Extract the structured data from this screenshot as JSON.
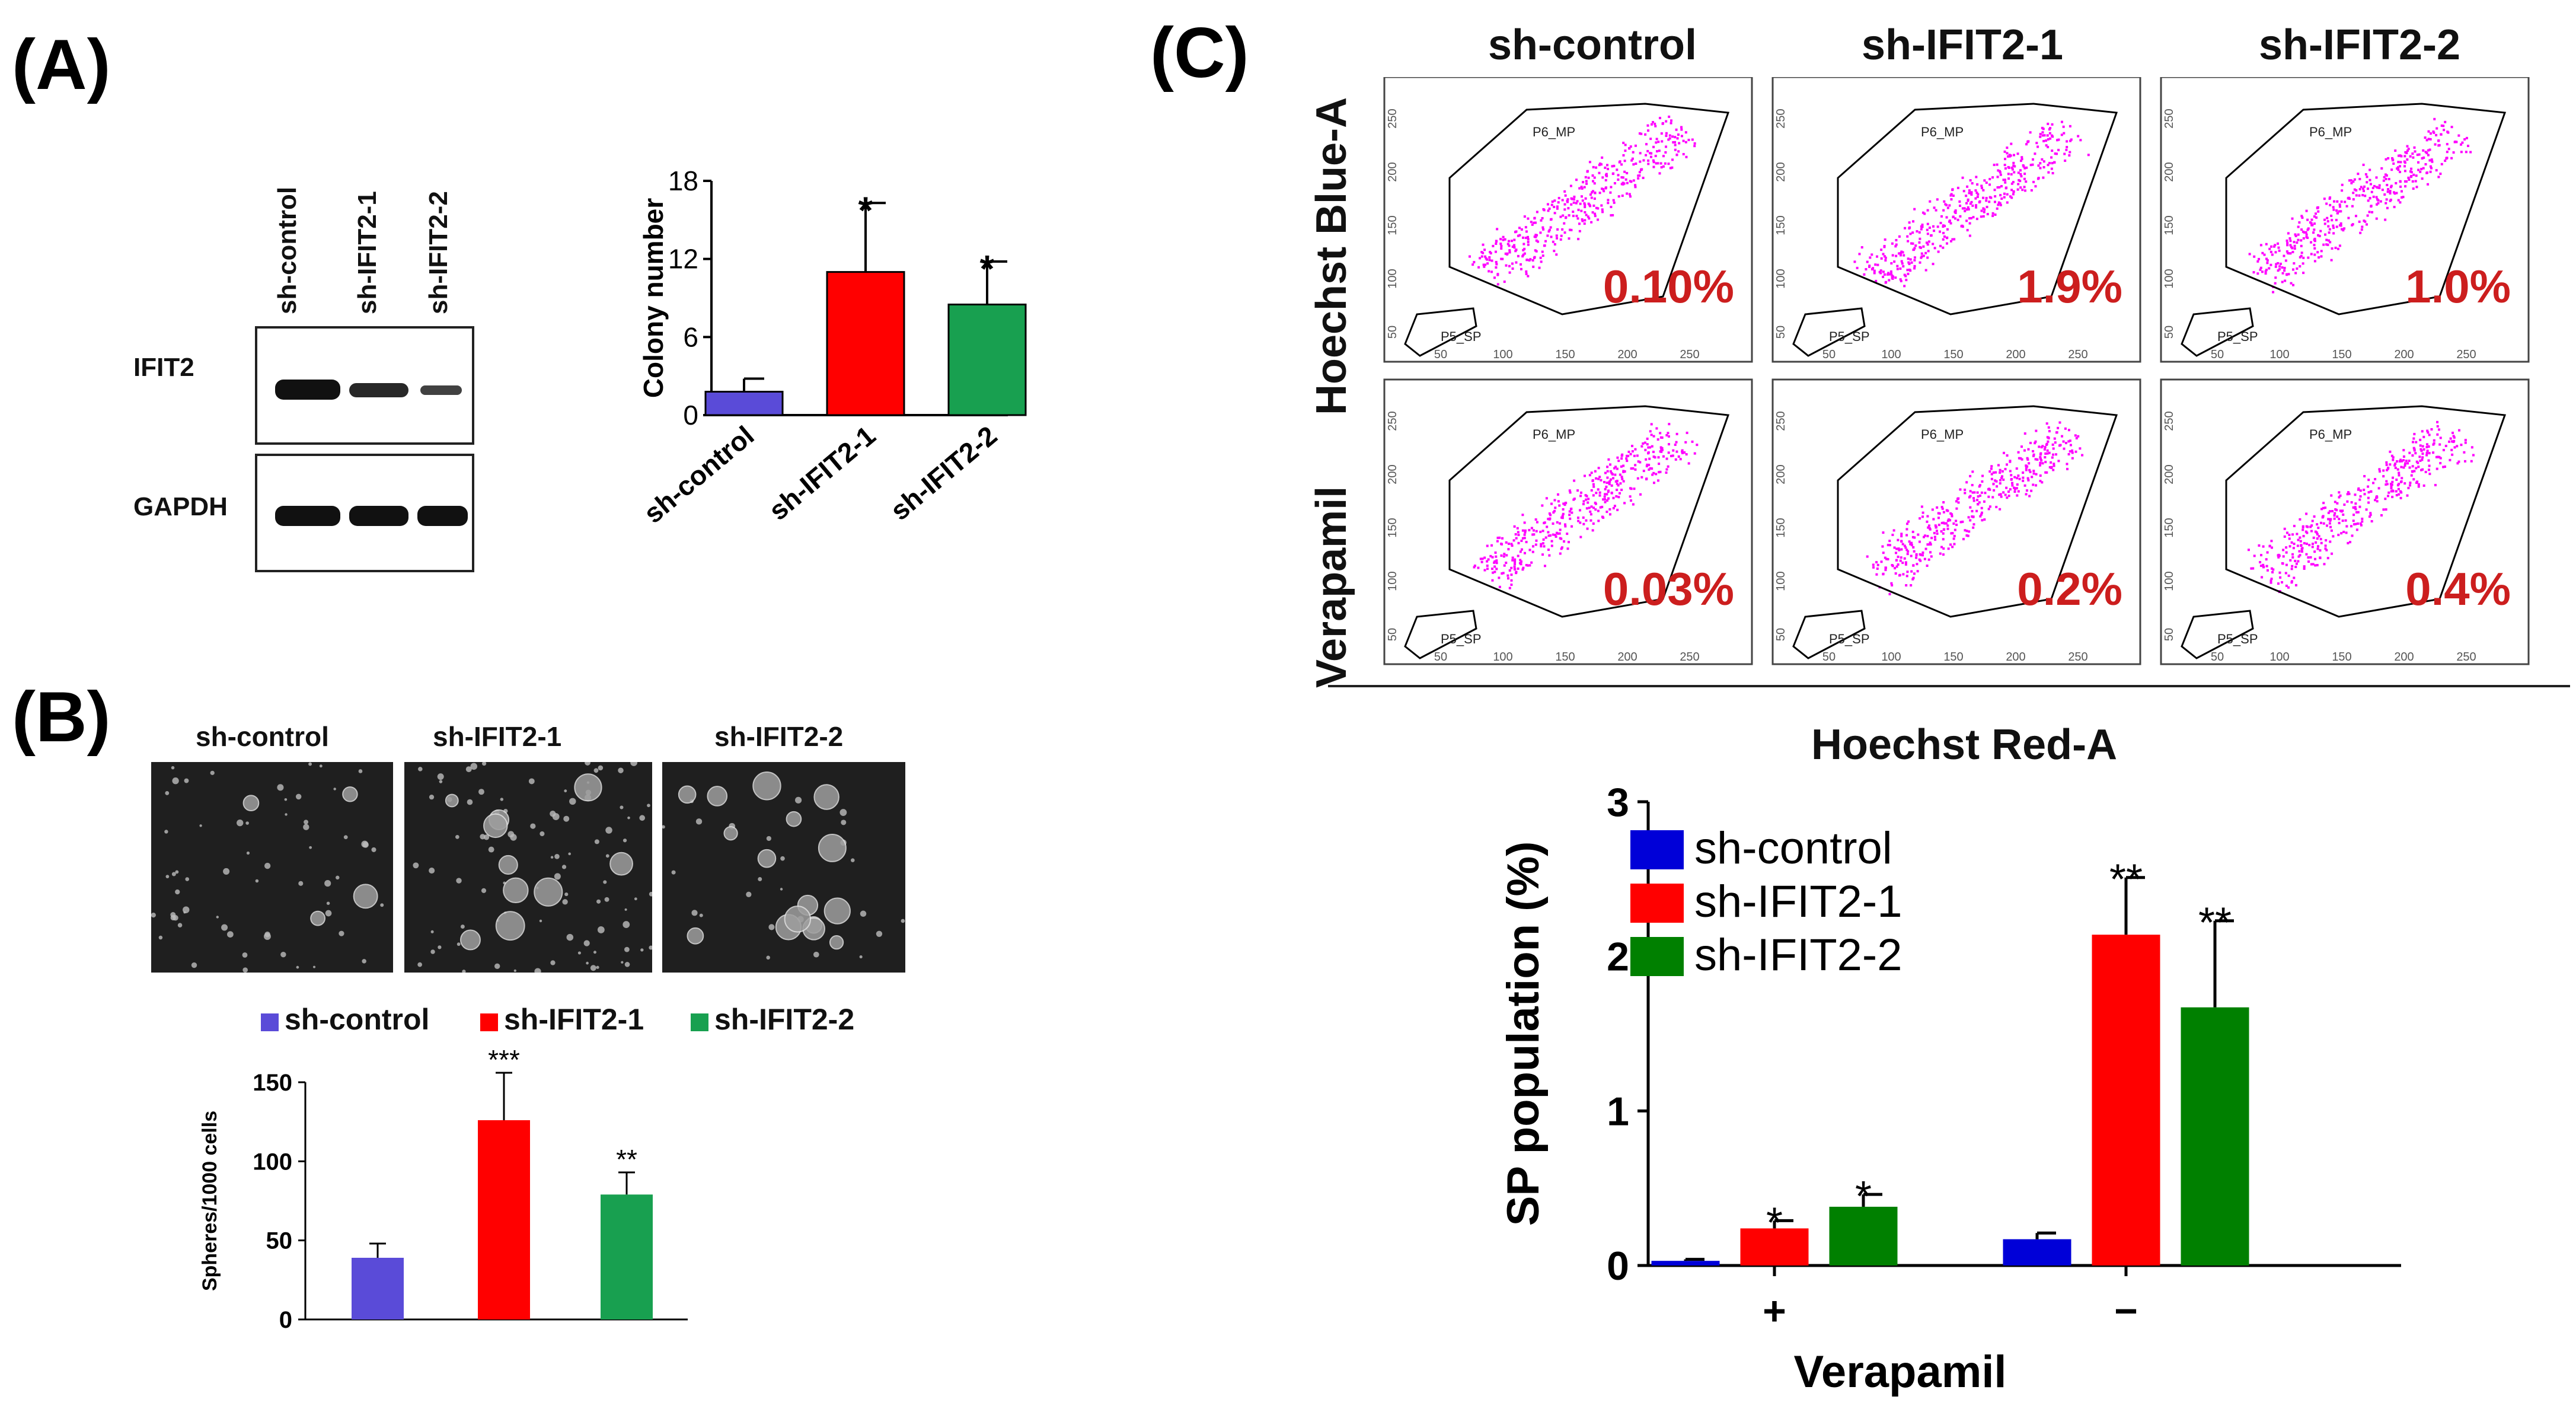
{
  "panels": {
    "a": "(A)",
    "b": "(B)",
    "c": "(C)"
  },
  "groups": [
    "sh-control",
    "sh-IFIT2-1",
    "sh-IFIT2-2"
  ],
  "colors": {
    "blue": "#5a4bd8",
    "red": "#ff0000",
    "green": "#18a050",
    "c_blue": "#0000d8",
    "c_red": "#ff0000",
    "c_green": "#008000",
    "magenta": "#ff00ff",
    "percent": "#cc1e1e"
  },
  "blot": {
    "lanes": [
      "sh-control",
      "sh-IFIT2-1",
      "sh-IFIT2-2"
    ],
    "rows": [
      "IFIT2",
      "GAPDH"
    ]
  },
  "flow": {
    "row_labels": [
      "Hoechst Blue-A",
      "Verapamil"
    ],
    "col_labels": [
      "sh-control",
      "sh-IFIT2-1",
      "sh-IFIT2-2"
    ],
    "percents": [
      [
        "0.10%",
        "1.9%",
        "1.0%"
      ],
      [
        "0.03%",
        "0.2%",
        "0.4%"
      ]
    ],
    "gate_labels": [
      "P6_MP",
      "P5_SP"
    ],
    "tick_labels": [
      "50",
      "100",
      "150",
      "200",
      "250"
    ],
    "xlabel": "Hoechst Red-A"
  },
  "chart_data": [
    {
      "id": "colony",
      "type": "bar",
      "categories": [
        "sh-control",
        "sh-IFIT2-1",
        "sh-IFIT2-2"
      ],
      "values": [
        1.8,
        11,
        8.5
      ],
      "errors": [
        1.0,
        5.3,
        3.3
      ],
      "significance": [
        "",
        "*",
        "*"
      ],
      "ylabel": "Colony number",
      "ylim": [
        0,
        18
      ],
      "yticks": [
        0,
        6,
        12,
        18
      ]
    },
    {
      "id": "spheres",
      "type": "bar",
      "categories": [
        "sh-control",
        "sh-IFIT2-1",
        "sh-IFIT2-2"
      ],
      "values": [
        39,
        126,
        79
      ],
      "errors": [
        9,
        30,
        14
      ],
      "significance": [
        "",
        "***",
        "**"
      ],
      "ylabel": "Spheres/1000 cells",
      "ylim": [
        0,
        150
      ],
      "yticks": [
        0,
        50,
        100,
        150
      ],
      "legend": [
        "sh-control",
        "sh-IFIT2-1",
        "sh-IFIT2-2"
      ]
    },
    {
      "id": "sp",
      "type": "bar",
      "categories": [
        "+",
        "−"
      ],
      "series": [
        {
          "name": "sh-control",
          "values": [
            0.03,
            0.17
          ],
          "errors": [
            0.01,
            0.04
          ],
          "significance": [
            "",
            ""
          ]
        },
        {
          "name": "sh-IFIT2-1",
          "values": [
            0.24,
            2.14
          ],
          "errors": [
            0.05,
            0.37
          ],
          "significance": [
            "*",
            "**"
          ]
        },
        {
          "name": "sh-IFIT2-2",
          "values": [
            0.38,
            1.67
          ],
          "errors": [
            0.08,
            0.56
          ],
          "significance": [
            "*",
            "**"
          ]
        }
      ],
      "ylabel": "SP population  (%)",
      "xlabel": "Verapamil",
      "ylim": [
        0,
        3
      ],
      "yticks": [
        0,
        1,
        2,
        3
      ]
    }
  ]
}
